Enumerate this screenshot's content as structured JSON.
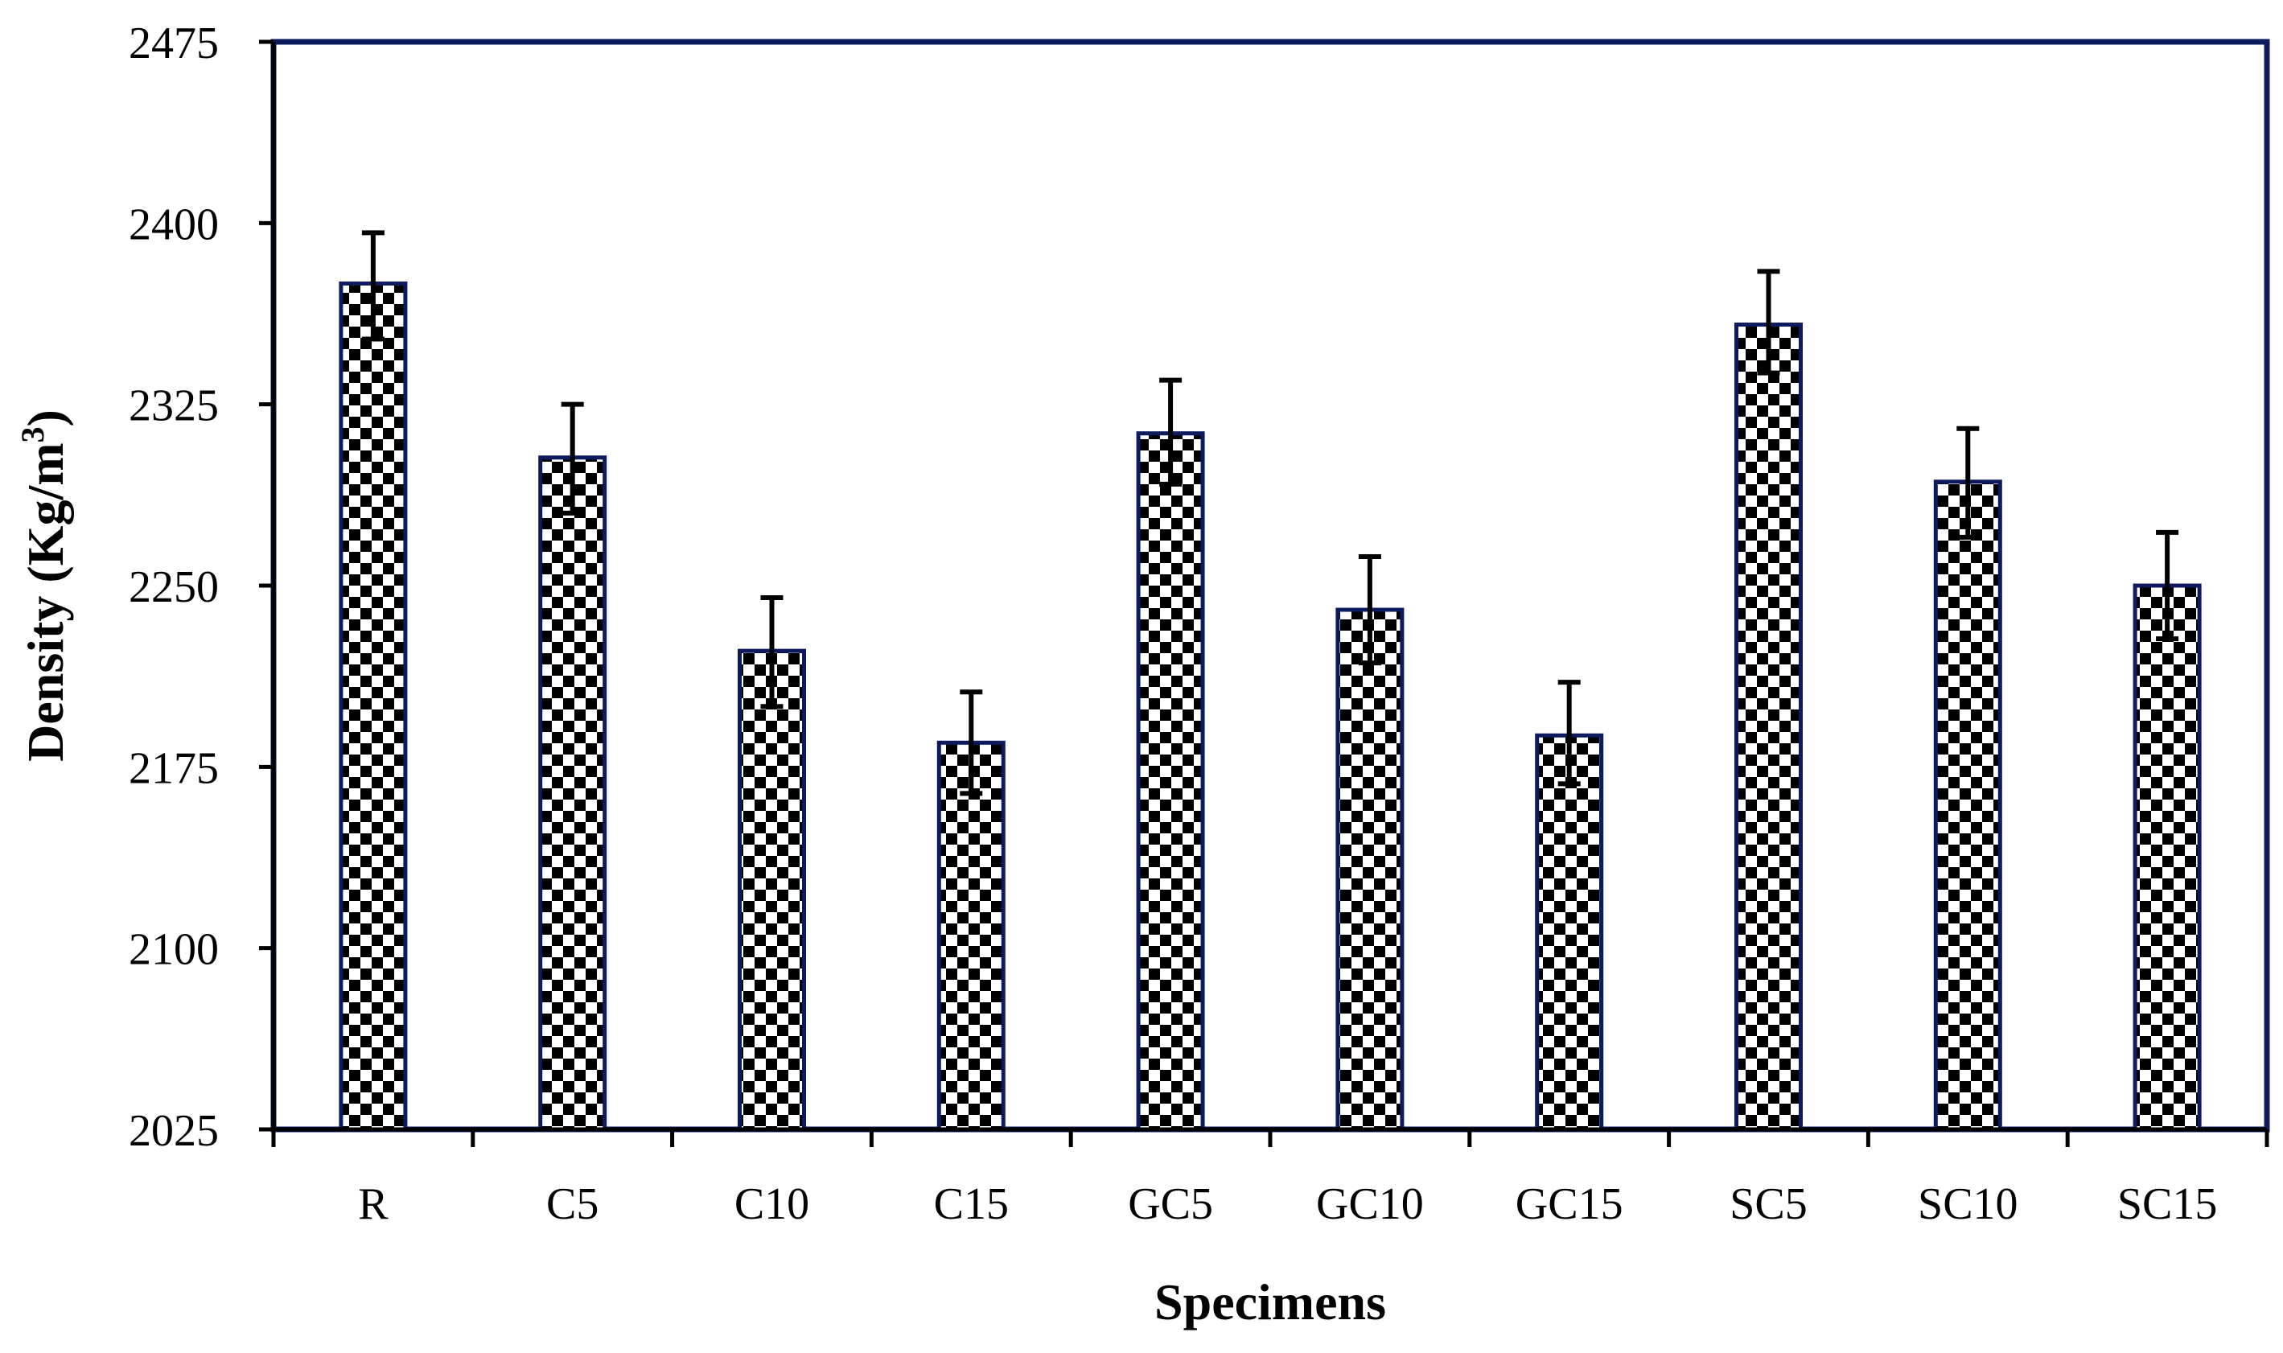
{
  "chart_data": {
    "type": "bar",
    "title": "",
    "xlabel": "Specimens",
    "ylabel": "Density (Kg/m",
    "ylabel_superscript": "3",
    "ylabel_close": ")",
    "categories": [
      "R",
      "C5",
      "C10",
      "C15",
      "GC5",
      "GC10",
      "GC15",
      "SC5",
      "SC10",
      "SC15"
    ],
    "values": [
      2375,
      2303,
      2223,
      2185,
      2313,
      2240,
      2188,
      2358,
      2293,
      2250
    ],
    "error_upper": [
      2396,
      2325,
      2245,
      2206,
      2335,
      2262,
      2210,
      2380,
      2315,
      2272
    ],
    "error_lower": [
      2352,
      2280,
      2200,
      2164,
      2292,
      2218,
      2168,
      2338,
      2270,
      2228
    ],
    "ylim": [
      2025,
      2475
    ],
    "yticks": [
      2025,
      2100,
      2175,
      2250,
      2325,
      2400,
      2475
    ],
    "grid": false,
    "colors": {
      "frame": "#0d1b5e",
      "bar_border": "#0d1b5e",
      "checker_dark": "#000000",
      "checker_light": "#ffffff",
      "error_bar": "#000000",
      "axis": "#000000"
    }
  }
}
